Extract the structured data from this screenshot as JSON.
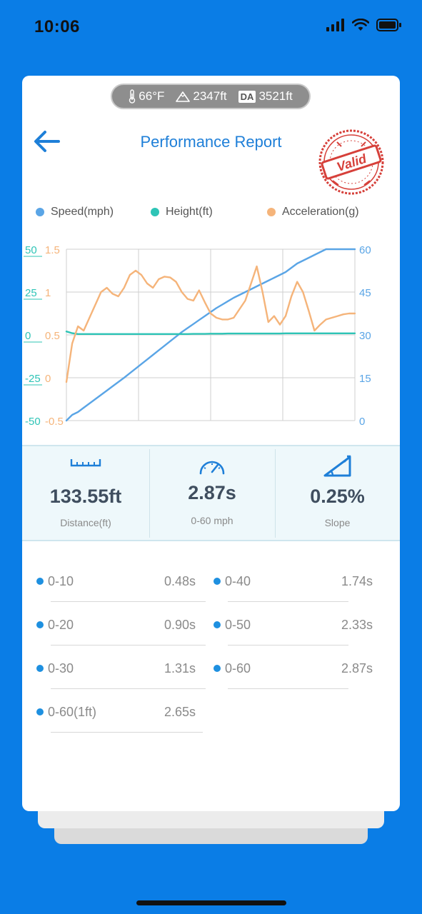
{
  "status_bar": {
    "time": "10:06"
  },
  "env": {
    "temperature": "66°F",
    "altitude": "2347ft",
    "da_label": "DA",
    "density_altitude": "3521ft"
  },
  "header": {
    "title": "Performance Report",
    "stamp_text": "Valid"
  },
  "legend": [
    {
      "label": "Speed(mph)",
      "color": "#5AA5E6"
    },
    {
      "label": "Height(ft)",
      "color": "#2EC4B6"
    },
    {
      "label": "Acceleration(g)",
      "color": "#F5B47A"
    }
  ],
  "chart_data": {
    "type": "line",
    "grid": true,
    "x": [
      0,
      0.02,
      0.04,
      0.06,
      0.08,
      0.1,
      0.12,
      0.14,
      0.16,
      0.18,
      0.2,
      0.22,
      0.24,
      0.26,
      0.28,
      0.3,
      0.32,
      0.34,
      0.36,
      0.38,
      0.4,
      0.42,
      0.44,
      0.46,
      0.48,
      0.5,
      0.52,
      0.54,
      0.56,
      0.58,
      0.6,
      0.62,
      0.64,
      0.66,
      0.68,
      0.7,
      0.72,
      0.74,
      0.76,
      0.78,
      0.8,
      0.82,
      0.84,
      0.86,
      0.88,
      0.9,
      0.92,
      0.94,
      0.96,
      0.98,
      1.0
    ],
    "axes": {
      "height_left": {
        "ticks": [
          "50",
          "25",
          "0",
          "-25",
          "-50"
        ],
        "ylim": [
          -50,
          50
        ],
        "color": "#2EC4B6"
      },
      "accel_left": {
        "ticks": [
          "1.5",
          "1",
          "0.5",
          "0",
          "-0.5"
        ],
        "ylim": [
          -0.5,
          1.5
        ],
        "color": "#F5B47A"
      },
      "speed_right": {
        "ticks": [
          "60",
          "45",
          "30",
          "15",
          "0"
        ],
        "ylim": [
          0,
          60
        ],
        "color": "#5AA5E6"
      }
    },
    "series": [
      {
        "name": "Speed(mph)",
        "axis": "speed_right",
        "color": "#5AA5E6",
        "values": [
          0,
          2,
          3,
          4.5,
          6,
          7.5,
          9,
          10.5,
          12,
          13.5,
          15,
          16.6,
          18.2,
          19.8,
          21.4,
          23,
          24.6,
          26.2,
          27.8,
          29.4,
          31,
          32.4,
          33.8,
          35.2,
          36.6,
          38,
          39.4,
          40.6,
          41.8,
          43,
          44,
          45,
          46,
          47,
          48,
          49,
          50,
          51,
          52,
          53.5,
          55,
          56,
          57,
          58,
          59,
          60,
          60,
          60,
          60,
          60,
          60
        ]
      },
      {
        "name": "Height(ft)",
        "axis": "height_left",
        "color": "#2EC4B6",
        "values": [
          2,
          1,
          0.5,
          0.5,
          0.5,
          0.5,
          0.5,
          0.5,
          0.5,
          0.5,
          0.5,
          0.5,
          0.5,
          0.5,
          0.5,
          0.5,
          0.5,
          0.5,
          0.5,
          0.5,
          0.5,
          0.5,
          0.6,
          0.6,
          0.6,
          0.7,
          0.7,
          0.7,
          0.8,
          0.8,
          0.8,
          0.8,
          0.8,
          0.8,
          0.8,
          0.8,
          0.8,
          0.8,
          0.9,
          0.9,
          0.9,
          0.9,
          0.9,
          0.9,
          0.9,
          0.9,
          0.9,
          0.9,
          0.9,
          0.9,
          0.9
        ]
      },
      {
        "name": "Acceleration(g)",
        "axis": "accel_left",
        "color": "#F5B47A",
        "values": [
          -0.05,
          0.4,
          0.6,
          0.55,
          0.7,
          0.85,
          1.0,
          1.05,
          0.98,
          0.95,
          1.05,
          1.2,
          1.25,
          1.2,
          1.1,
          1.05,
          1.15,
          1.18,
          1.17,
          1.12,
          1.0,
          0.92,
          0.9,
          1.02,
          0.88,
          0.75,
          0.7,
          0.68,
          0.68,
          0.7,
          0.8,
          0.9,
          1.1,
          1.3,
          1.0,
          0.65,
          0.72,
          0.62,
          0.72,
          0.95,
          1.12,
          1.0,
          0.78,
          0.55,
          0.62,
          0.68,
          0.7,
          0.72,
          0.74,
          0.75,
          0.75
        ]
      }
    ]
  },
  "stats": [
    {
      "value": "133.55ft",
      "label": "Distance(ft)",
      "icon": "ruler-icon"
    },
    {
      "value": "2.87s",
      "label": "0-60 mph",
      "icon": "speedometer-icon"
    },
    {
      "value": "0.25%",
      "label": "Slope",
      "icon": "slope-icon"
    }
  ],
  "splits": [
    {
      "name": "0-10",
      "time": "0.48s"
    },
    {
      "name": "0-40",
      "time": "1.74s"
    },
    {
      "name": "0-20",
      "time": "0.90s"
    },
    {
      "name": "0-50",
      "time": "2.33s"
    },
    {
      "name": "0-30",
      "time": "1.31s"
    },
    {
      "name": "0-60",
      "time": "2.87s"
    },
    {
      "name": "0-60(1ft)",
      "time": "2.65s"
    }
  ]
}
